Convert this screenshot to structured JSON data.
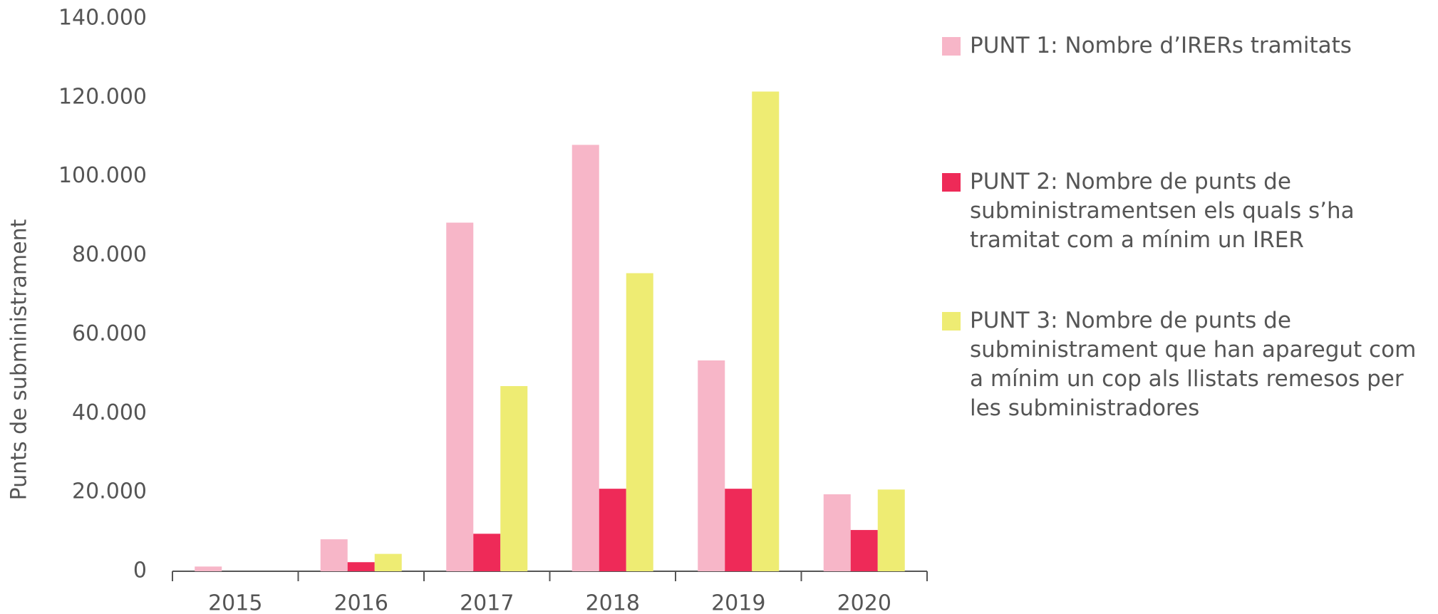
{
  "chart_data": {
    "type": "bar",
    "y_label": "Punts de subministrament",
    "categories": [
      "2015",
      "2016",
      "2017",
      "2018",
      "2019",
      "2020"
    ],
    "series": [
      {
        "name": "PUNT 1: Nombre d’IRERs tramitats",
        "color": "#f7b6c8",
        "values": [
          1200,
          8100,
          88300,
          108000,
          53400,
          19500
        ]
      },
      {
        "name": "PUNT 2: Nombre de punts de subministramentsen els quals s’ha tramitat com a mínim un IRER",
        "color": "#ee2a58",
        "values": [
          0,
          2300,
          9500,
          20900,
          20900,
          10450
        ]
      },
      {
        "name": "PUNT 3: Nombre de punts de subministrament que han aparegut com a mínim un cop als llistats remesos per les subministradores",
        "color": "#eeec73",
        "values": [
          0,
          4400,
          46900,
          75500,
          121500,
          20700
        ]
      }
    ],
    "ylim": [
      0,
      140000
    ],
    "yticks": [
      0,
      {
        "value": 20000,
        "label": "20.000"
      },
      {
        "value": 40000,
        "label": "40.000"
      },
      {
        "value": 60000,
        "label": "60.000"
      },
      {
        "value": 80000,
        "label": "80.000"
      },
      {
        "value": 100000,
        "label": "100.000"
      },
      {
        "value": 120000,
        "label": "120.000"
      },
      {
        "value": 140000,
        "label": "140.000"
      }
    ],
    "legend": "right"
  }
}
